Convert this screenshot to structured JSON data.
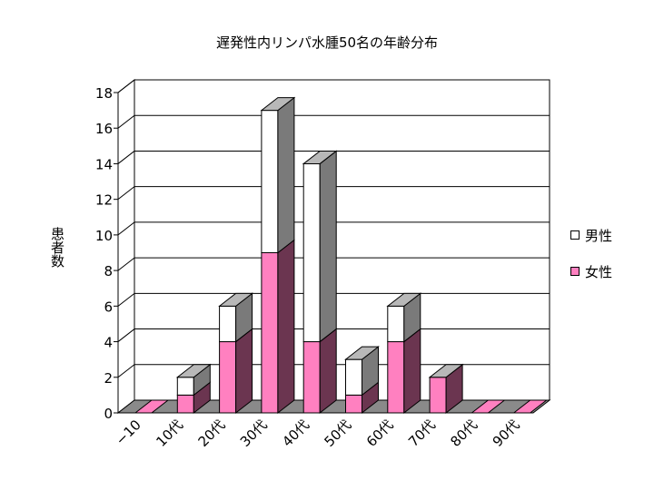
{
  "chart_data": {
    "type": "bar",
    "stacked": true,
    "three_d": true,
    "title": "遅発性内リンパ水腫50名の年齢分布",
    "ylabel": "患者数",
    "xlabel": "",
    "categories": [
      "−10",
      "10代",
      "20代",
      "30代",
      "40代",
      "50代",
      "60代",
      "70代",
      "80代",
      "90代"
    ],
    "series": [
      {
        "name": "女性",
        "values": [
          0,
          1,
          4,
          9,
          4,
          1,
          4,
          2,
          0,
          0
        ],
        "color": "#ff80c0"
      },
      {
        "name": "男性",
        "values": [
          0,
          1,
          2,
          8,
          10,
          2,
          2,
          0,
          0,
          0
        ],
        "color": "#ffffff"
      }
    ],
    "ylim": [
      0,
      18
    ],
    "yticks": [
      0,
      2,
      4,
      6,
      8,
      10,
      12,
      14,
      16,
      18
    ],
    "grid": true,
    "legend_position": "right"
  },
  "colors": {
    "female_front": "#ff80c0",
    "female_side": "#6b3550",
    "male_front": "#ffffff",
    "male_side": "#7a7a7a",
    "top_face": "#b8b8b8",
    "floor": "#8a8a8a"
  },
  "legend": {
    "male_label": "男性",
    "female_label": "女性"
  }
}
